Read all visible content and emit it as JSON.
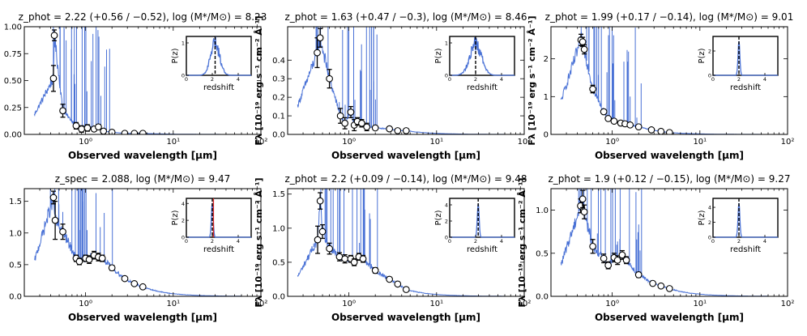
{
  "chart_data": {
    "type": "scatter",
    "xlabel": "Observed wavelength [μm]",
    "ylabel": "Fλ [10⁻¹⁹ erg s⁻¹ cm⁻² Å⁻¹]",
    "xscale": "log",
    "xlim": [
      0.2,
      100
    ],
    "x_ticks": [
      "10⁰",
      "10¹",
      "10²"
    ],
    "inset": {
      "xlabel": "redshift",
      "ylabel": "P(z)",
      "xlim": [
        0,
        5
      ],
      "x_ticks": [
        "0",
        "2",
        "4"
      ]
    },
    "panels": [
      {
        "title": "z_phot = 2.22 (+0.56 / −0.52),  log (M*/M⊙) = 8.23",
        "ylim": [
          0,
          1.0
        ],
        "y_ticks": [
          "0.00",
          "0.25",
          "0.50",
          "0.75",
          "1.00"
        ],
        "y_tick_values": [
          0,
          0.25,
          0.5,
          0.75,
          1.0
        ],
        "inset_ylim": [
          0,
          1.2
        ],
        "inset_y_ticks": [
          "0",
          "1"
        ],
        "inset_y_tick_values": [
          0,
          1
        ],
        "z_marker": 2.22,
        "photometry": [
          {
            "x": 0.44,
            "y": 0.92,
            "err": 0.05
          },
          {
            "x": 0.43,
            "y": 0.52,
            "err": 0.12
          },
          {
            "x": 0.55,
            "y": 0.22,
            "err": 0.06
          },
          {
            "x": 0.78,
            "y": 0.08,
            "err": 0.03
          },
          {
            "x": 0.9,
            "y": 0.05,
            "err": 0.03
          },
          {
            "x": 1.05,
            "y": 0.06,
            "err": 0.03
          },
          {
            "x": 1.25,
            "y": 0.05,
            "err": 0.02
          },
          {
            "x": 1.4,
            "y": 0.07,
            "err": 0.02
          },
          {
            "x": 1.6,
            "y": 0.03,
            "err": 0.02
          },
          {
            "x": 2.0,
            "y": 0.02,
            "err": 0.01
          },
          {
            "x": 2.8,
            "y": 0.01,
            "err": 0.01
          },
          {
            "x": 3.6,
            "y": 0.01,
            "err": 0.01
          },
          {
            "x": 4.5,
            "y": 0.01,
            "err": 0.01
          }
        ]
      },
      {
        "title": "z_phot = 1.63 (+0.47 / −0.3),  log (M*/M⊙) = 8.46",
        "ylim": [
          0,
          0.58
        ],
        "y_ticks": [
          "0.0",
          "0.1",
          "0.2",
          "0.3",
          "0.4"
        ],
        "y_tick_values": [
          0,
          0.1,
          0.2,
          0.3,
          0.4
        ],
        "inset_ylim": [
          0,
          1.2
        ],
        "inset_y_ticks": [
          "0",
          "1"
        ],
        "inset_y_tick_values": [
          0,
          1
        ],
        "z_marker": 2.0,
        "photometry": [
          {
            "x": 0.435,
            "y": 0.44,
            "err": 0.08
          },
          {
            "x": 0.47,
            "y": 0.52,
            "err": 0.05
          },
          {
            "x": 0.6,
            "y": 0.3,
            "err": 0.05
          },
          {
            "x": 0.8,
            "y": 0.1,
            "err": 0.04
          },
          {
            "x": 0.9,
            "y": 0.06,
            "err": 0.03
          },
          {
            "x": 1.05,
            "y": 0.12,
            "err": 0.03
          },
          {
            "x": 1.15,
            "y": 0.05,
            "err": 0.03
          },
          {
            "x": 1.25,
            "y": 0.07,
            "err": 0.02
          },
          {
            "x": 1.4,
            "y": 0.06,
            "err": 0.02
          },
          {
            "x": 1.6,
            "y": 0.04,
            "err": 0.02
          },
          {
            "x": 2.0,
            "y": 0.035,
            "err": 0.01
          },
          {
            "x": 2.9,
            "y": 0.03,
            "err": 0.01
          },
          {
            "x": 3.6,
            "y": 0.02,
            "err": 0.01
          },
          {
            "x": 4.5,
            "y": 0.02,
            "err": 0.01
          }
        ]
      },
      {
        "title": "z_phot = 1.99 (+0.17 / −0.14),  log (M*/M⊙) = 9.01",
        "ylim": [
          0,
          2.85
        ],
        "y_ticks": [
          "0",
          "1",
          "2"
        ],
        "y_tick_values": [
          0,
          1,
          2
        ],
        "inset_ylim": [
          0,
          3.2
        ],
        "inset_y_ticks": [
          "0",
          "2"
        ],
        "inset_y_tick_values": [
          0,
          2
        ],
        "z_marker": 2.0,
        "photometry": [
          {
            "x": 0.44,
            "y": 2.5,
            "err": 0.15
          },
          {
            "x": 0.46,
            "y": 2.45,
            "err": 0.12
          },
          {
            "x": 0.48,
            "y": 2.25,
            "err": 0.12
          },
          {
            "x": 0.6,
            "y": 1.2,
            "err": 0.1
          },
          {
            "x": 0.8,
            "y": 0.6,
            "err": 0.05
          },
          {
            "x": 0.9,
            "y": 0.42,
            "err": 0.04
          },
          {
            "x": 1.05,
            "y": 0.35,
            "err": 0.03
          },
          {
            "x": 1.25,
            "y": 0.3,
            "err": 0.03
          },
          {
            "x": 1.4,
            "y": 0.28,
            "err": 0.03
          },
          {
            "x": 1.6,
            "y": 0.25,
            "err": 0.02
          },
          {
            "x": 2.0,
            "y": 0.2,
            "err": 0.02
          },
          {
            "x": 2.8,
            "y": 0.12,
            "err": 0.02
          },
          {
            "x": 3.6,
            "y": 0.08,
            "err": 0.01
          },
          {
            "x": 4.5,
            "y": 0.05,
            "err": 0.01
          }
        ]
      },
      {
        "title": "z_spec = 2.088,  log (M*/M⊙) = 9.47",
        "ylim": [
          0,
          1.7
        ],
        "y_ticks": [
          "0.0",
          "0.5",
          "1.0",
          "1.5"
        ],
        "y_tick_values": [
          0,
          0.5,
          1.0,
          1.5
        ],
        "inset_ylim": [
          0,
          4.6
        ],
        "inset_y_ticks": [
          "0",
          "2",
          "4"
        ],
        "inset_y_tick_values": [
          0,
          2,
          4
        ],
        "z_marker": 2.0,
        "z_spec_line": 2.088,
        "photometry": [
          {
            "x": 0.43,
            "y": 1.56,
            "err": 0.1
          },
          {
            "x": 0.45,
            "y": 1.2,
            "err": 0.3
          },
          {
            "x": 0.55,
            "y": 1.02,
            "err": 0.12
          },
          {
            "x": 0.78,
            "y": 0.6,
            "err": 0.05
          },
          {
            "x": 0.85,
            "y": 0.55,
            "err": 0.05
          },
          {
            "x": 1.0,
            "y": 0.6,
            "err": 0.05
          },
          {
            "x": 1.1,
            "y": 0.58,
            "err": 0.06
          },
          {
            "x": 1.25,
            "y": 0.65,
            "err": 0.06
          },
          {
            "x": 1.4,
            "y": 0.62,
            "err": 0.06
          },
          {
            "x": 1.55,
            "y": 0.6,
            "err": 0.05
          },
          {
            "x": 2.0,
            "y": 0.45,
            "err": 0.04
          },
          {
            "x": 2.8,
            "y": 0.28,
            "err": 0.03
          },
          {
            "x": 3.6,
            "y": 0.2,
            "err": 0.02
          },
          {
            "x": 4.5,
            "y": 0.15,
            "err": 0.02
          }
        ]
      },
      {
        "title": "z_phot = 2.2 (+0.09 / −0.14),  log (M*/M⊙) = 9.48",
        "ylim": [
          0,
          1.58
        ],
        "y_ticks": [
          "0.0",
          "0.5",
          "1.0",
          "1.5"
        ],
        "y_tick_values": [
          0,
          0.5,
          1.0,
          1.5
        ],
        "inset_ylim": [
          0,
          4.8
        ],
        "inset_y_ticks": [
          "0",
          "2",
          "4"
        ],
        "inset_y_tick_values": [
          0,
          2,
          4
        ],
        "z_marker": 2.2,
        "photometry": [
          {
            "x": 0.44,
            "y": 0.83,
            "err": 0.2
          },
          {
            "x": 0.47,
            "y": 1.4,
            "err": 0.12
          },
          {
            "x": 0.5,
            "y": 0.95,
            "err": 0.1
          },
          {
            "x": 0.6,
            "y": 0.7,
            "err": 0.08
          },
          {
            "x": 0.78,
            "y": 0.58,
            "err": 0.06
          },
          {
            "x": 0.9,
            "y": 0.55,
            "err": 0.06
          },
          {
            "x": 1.05,
            "y": 0.55,
            "err": 0.05
          },
          {
            "x": 1.15,
            "y": 0.5,
            "err": 0.05
          },
          {
            "x": 1.3,
            "y": 0.58,
            "err": 0.05
          },
          {
            "x": 1.45,
            "y": 0.55,
            "err": 0.05
          },
          {
            "x": 2.0,
            "y": 0.38,
            "err": 0.04
          },
          {
            "x": 2.9,
            "y": 0.25,
            "err": 0.03
          },
          {
            "x": 3.6,
            "y": 0.18,
            "err": 0.02
          },
          {
            "x": 4.5,
            "y": 0.1,
            "err": 0.02
          }
        ]
      },
      {
        "title": "z_phot = 1.9 (+0.12 / −0.15),  log (M*/M⊙) = 9.27",
        "ylim": [
          0,
          1.25
        ],
        "y_ticks": [
          "0.0",
          "0.5",
          "1.0"
        ],
        "y_tick_values": [
          0,
          0.5,
          1.0
        ],
        "inset_ylim": [
          0,
          5.2
        ],
        "inset_y_ticks": [
          "0",
          "2",
          "4"
        ],
        "inset_y_tick_values": [
          0,
          2,
          4
        ],
        "z_marker": 2.0,
        "photometry": [
          {
            "x": 0.435,
            "y": 1.05,
            "err": 0.08
          },
          {
            "x": 0.46,
            "y": 1.13,
            "err": 0.1
          },
          {
            "x": 0.48,
            "y": 0.98,
            "err": 0.08
          },
          {
            "x": 0.6,
            "y": 0.58,
            "err": 0.08
          },
          {
            "x": 0.8,
            "y": 0.44,
            "err": 0.05
          },
          {
            "x": 0.9,
            "y": 0.36,
            "err": 0.04
          },
          {
            "x": 1.05,
            "y": 0.45,
            "err": 0.05
          },
          {
            "x": 1.15,
            "y": 0.42,
            "err": 0.05
          },
          {
            "x": 1.3,
            "y": 0.48,
            "err": 0.05
          },
          {
            "x": 1.45,
            "y": 0.42,
            "err": 0.04
          },
          {
            "x": 2.0,
            "y": 0.25,
            "err": 0.03
          },
          {
            "x": 2.9,
            "y": 0.15,
            "err": 0.02
          },
          {
            "x": 3.6,
            "y": 0.12,
            "err": 0.02
          },
          {
            "x": 4.5,
            "y": 0.09,
            "err": 0.01
          }
        ]
      }
    ],
    "colors": {
      "model": "#4a72d6",
      "marker_edge": "#000000",
      "marker_fill": "#ffffff",
      "z_marker": "#000000",
      "z_spec_line": "#d62728"
    }
  }
}
